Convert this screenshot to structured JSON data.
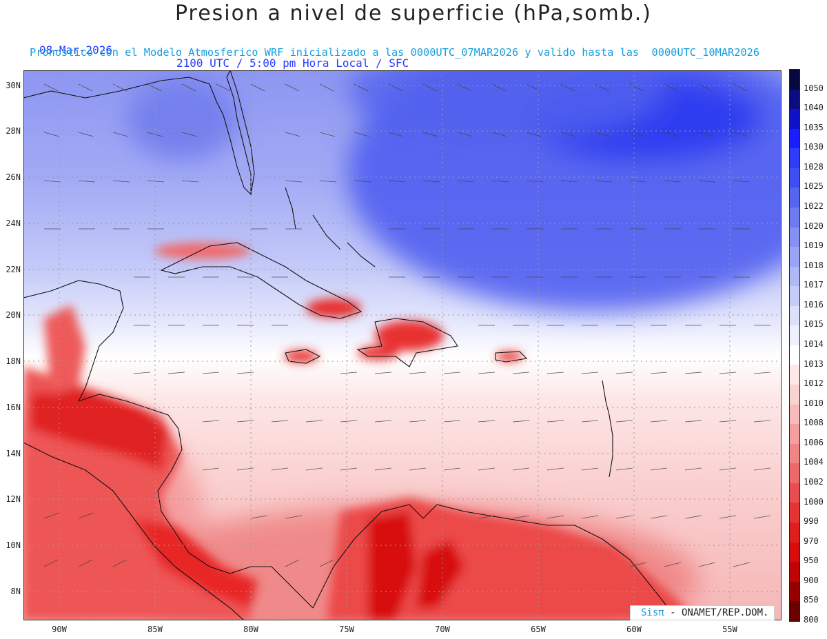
{
  "header": {
    "title": "Presion a nivel de superficie (hPa,somb.)",
    "date": "08-Mar-2026",
    "time_info": "2100 UTC / 5:00 pm Hora Local / SFC",
    "forecast_info": "Pronostico con el Modelo Atmosferico WRF inicializado a las 0000UTC_07MAR2026 y valido hasta las  0000UTC_10MAR2026"
  },
  "map": {
    "lat_labels": [
      "30N",
      "28N",
      "26N",
      "24N",
      "22N",
      "20N",
      "18N",
      "16N",
      "14N",
      "12N",
      "10N",
      "8N"
    ],
    "lon_labels": [
      "90W",
      "85W",
      "80W",
      "75W",
      "70W",
      "65W",
      "60W",
      "55W"
    ]
  },
  "colorbar": {
    "levels": [
      "1050",
      "1040",
      "1035",
      "1030",
      "1028",
      "1025",
      "1022",
      "1020",
      "1019",
      "1018",
      "1017",
      "1016",
      "1015",
      "1014",
      "1013",
      "1012",
      "1010",
      "1008",
      "1006",
      "1004",
      "1002",
      "1000",
      "990",
      "970",
      "950",
      "900",
      "850",
      "800"
    ],
    "colors": [
      "#06083f",
      "#0a0c80",
      "#0f12c8",
      "#1a1eff",
      "#2e3bf7",
      "#3f4ef0",
      "#5565ee",
      "#6d7bf0",
      "#8590f2",
      "#9aa4f5",
      "#b0b8f7",
      "#c6ccf9",
      "#dde0fb",
      "#eef0fd",
      "#ffffff",
      "#fde7e7",
      "#fbd2d2",
      "#f8baba",
      "#f49f9f",
      "#f08585",
      "#ec6a6a",
      "#e84e4e",
      "#e43434",
      "#e01e1e",
      "#d80c0c",
      "#c00404",
      "#980000",
      "#6a0000"
    ]
  },
  "logo": {
    "brand": "Sisπ",
    "agency": " - ONAMET/REP.DOM."
  }
}
